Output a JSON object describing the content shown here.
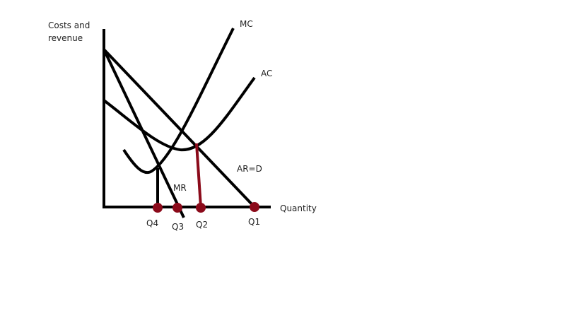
{
  "axes": {
    "y_label_line1": "Costs and",
    "y_label_line2": "revenue",
    "x_label": "Quantity"
  },
  "curves": {
    "mc": "MC",
    "ac": "AC",
    "ar": "AR=D",
    "mr": "MR"
  },
  "quantities": {
    "q1": "Q1",
    "q2": "Q2",
    "q3": "Q3",
    "q4": "Q4"
  },
  "colors": {
    "line": "#000000",
    "marker": "#8b0a1a",
    "text": "#222222"
  }
}
